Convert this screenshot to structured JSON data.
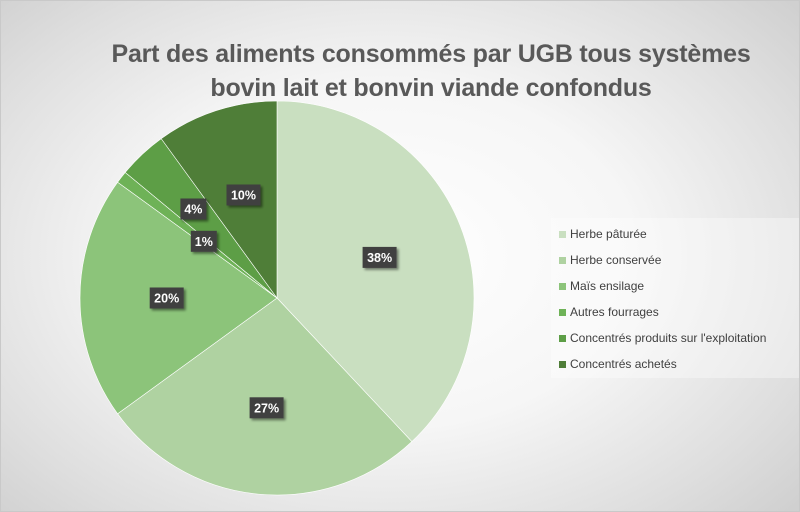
{
  "chart_data": {
    "type": "pie",
    "title": "Part des aliments consommés par UGB tous systèmes bovin lait et bonvin viande confondus",
    "title_lines": [
      "Part des aliments consommés par UGB tous systèmes",
      "bovin lait et bonvin viande confondus"
    ],
    "categories": [
      "Herbe pâturée",
      "Herbe conservée",
      "Maïs ensilage",
      "Autres fourrages",
      "Concentrés produits sur l'exploitation",
      "Concentrés achetés"
    ],
    "values": [
      38,
      27,
      20,
      1,
      4,
      10
    ],
    "data_labels": [
      "38%",
      "27%",
      "20%",
      "1%",
      "4%",
      "10%"
    ],
    "colors": [
      "#c9dfc0",
      "#afd2a1",
      "#8cc47a",
      "#6eb257",
      "#5d9e46",
      "#4f7e38"
    ],
    "legend_position": "right",
    "start_angle": "12 o'clock, clockwise"
  }
}
